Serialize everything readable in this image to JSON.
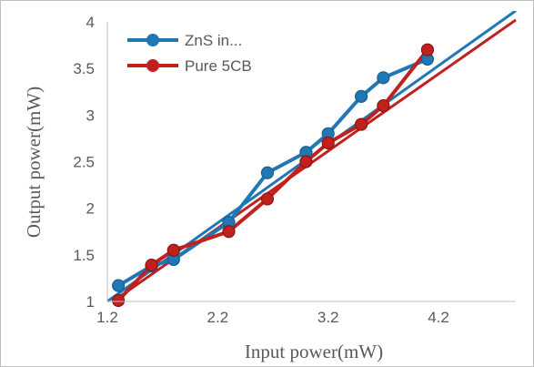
{
  "chart_data": {
    "type": "line",
    "title": "",
    "xlabel": "Input power(mW)",
    "ylabel": "Output power(mW)",
    "xlim": [
      1.2,
      4.9
    ],
    "ylim": [
      1,
      4
    ],
    "x_ticks": [
      "1.2",
      "2.2",
      "3.2",
      "4.2"
    ],
    "x_tick_values": [
      1.2,
      2.2,
      3.2,
      4.2
    ],
    "y_ticks": [
      "1",
      "1.5",
      "2",
      "2.5",
      "3",
      "3.5",
      "4"
    ],
    "y_tick_values": [
      1,
      1.5,
      2,
      2.5,
      3,
      3.5,
      4
    ],
    "grid": false,
    "legend_position": "top-left",
    "series": [
      {
        "name": "ZnS in...",
        "color": "#1f77b4",
        "x": [
          1.3,
          1.6,
          1.8,
          2.3,
          2.65,
          3.0,
          3.2,
          3.5,
          3.7,
          4.1
        ],
        "y": [
          1.17,
          1.38,
          1.45,
          1.85,
          2.38,
          2.6,
          2.8,
          3.2,
          3.4,
          3.6
        ],
        "trendline": {
          "x": [
            1.2,
            4.9
          ],
          "y": [
            1.0,
            4.12
          ]
        }
      },
      {
        "name": "Pure 5CB",
        "color": "#c0211f",
        "x": [
          1.3,
          1.6,
          1.8,
          2.3,
          2.65,
          3.0,
          3.2,
          3.5,
          3.7,
          4.1
        ],
        "y": [
          1.01,
          1.39,
          1.55,
          1.75,
          2.1,
          2.5,
          2.7,
          2.9,
          3.1,
          3.7
        ],
        "trendline": {
          "x": [
            1.25,
            4.9
          ],
          "y": [
            1.0,
            4.02
          ]
        }
      }
    ]
  }
}
